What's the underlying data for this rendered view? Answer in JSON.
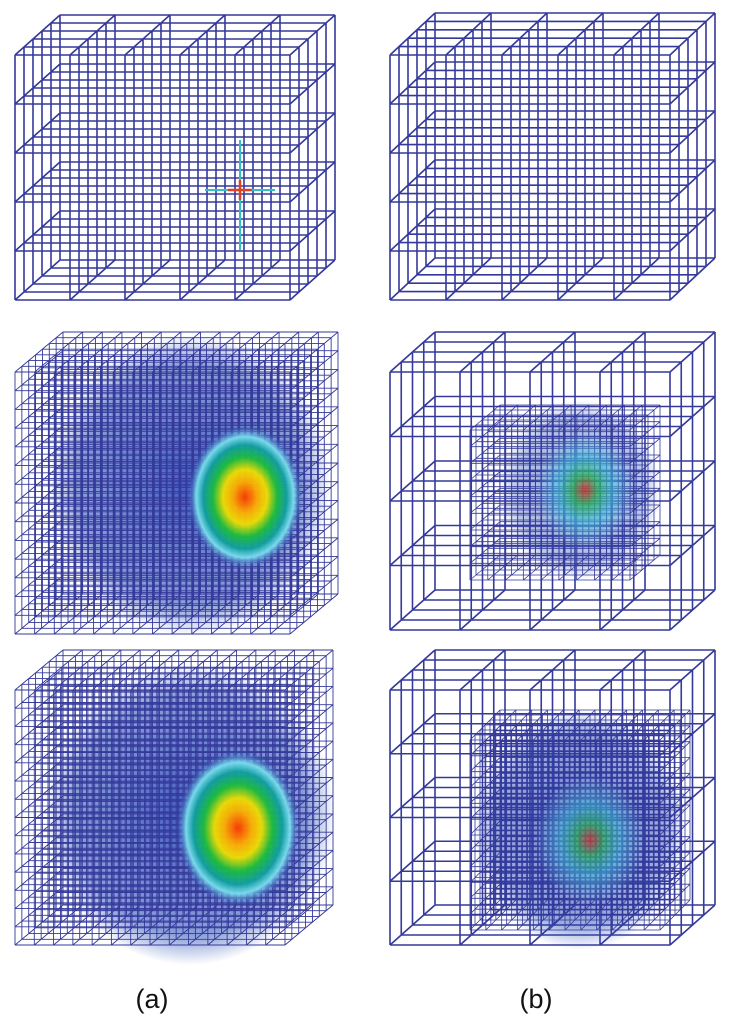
{
  "figure": {
    "panel_labels": [
      "(a)",
      "(b)"
    ]
  }
}
